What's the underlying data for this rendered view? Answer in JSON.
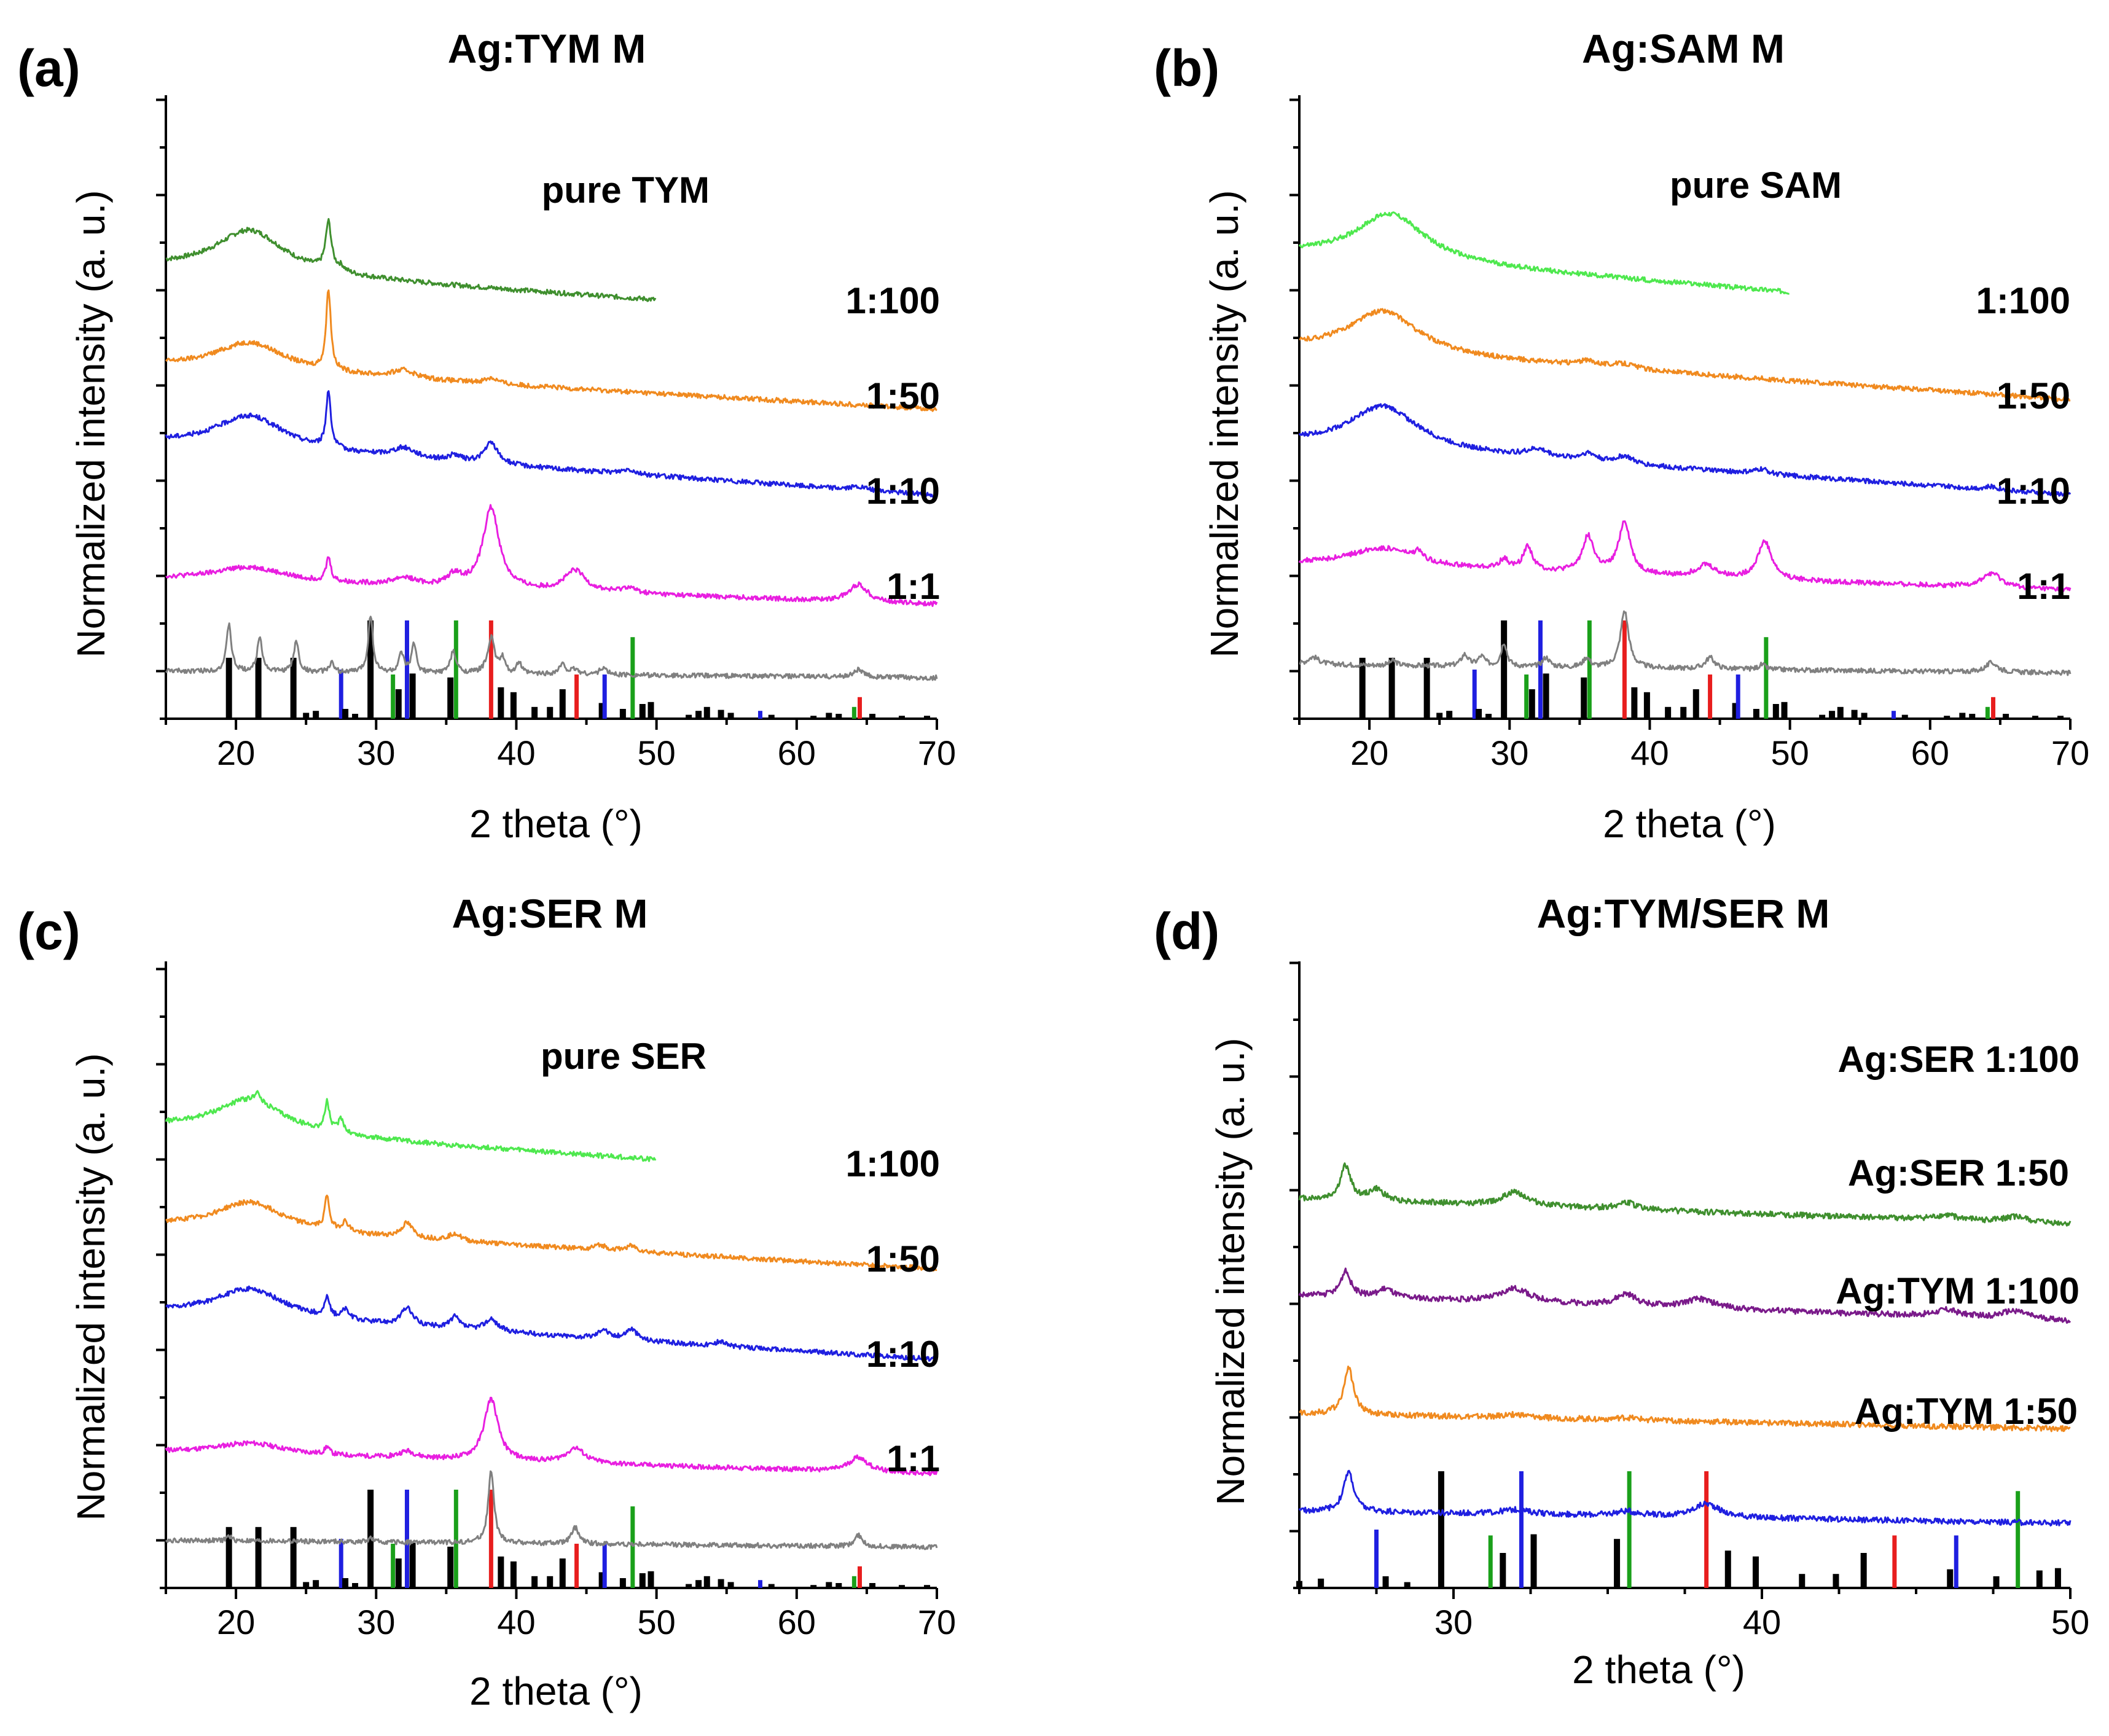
{
  "chart_data": [
    {
      "panel": "(a)",
      "type": "line",
      "title": "Ag:TYM M",
      "xlabel": "2 theta (°)",
      "ylabel": "Normalized intensity (a. u.)",
      "xlim": [
        15,
        70
      ],
      "xticks": [
        20,
        30,
        40,
        50,
        60,
        70
      ],
      "series": [
        {
          "name": "pure TYM",
          "color": "#3f8f2e",
          "xmax": 50,
          "offset": 4.05,
          "decay": 0.6,
          "start": 0.15,
          "peaks": [
            [
              21,
              0.45,
              3
            ],
            [
              26.6,
              0.5,
              0.25
            ],
            [
              27.5,
              0.05,
              0.3
            ]
          ]
        },
        {
          "name": "1:100",
          "color": "#f08a1f",
          "xmax": 70,
          "offset": 3.05,
          "decay": 0.5,
          "start": 0.2,
          "peaks": [
            [
              21,
              0.3,
              3
            ],
            [
              26.6,
              0.85,
              0.2
            ],
            [
              32,
              0.08,
              1
            ],
            [
              38.2,
              0.06,
              0.6
            ]
          ]
        },
        {
          "name": "1:50",
          "color": "#1f1fe0",
          "xmax": 70,
          "offset": 2.05,
          "decay": 0.6,
          "start": 0.3,
          "peaks": [
            [
              21,
              0.35,
              3
            ],
            [
              26.6,
              0.6,
              0.2
            ],
            [
              32,
              0.1,
              1
            ],
            [
              35.6,
              0.06,
              0.5
            ],
            [
              38.2,
              0.22,
              0.6
            ],
            [
              48,
              0.05,
              0.6
            ],
            [
              64.4,
              0.03,
              0.6
            ]
          ]
        },
        {
          "name": "1:10",
          "color": "#e81ee0",
          "xmax": 70,
          "offset": 1.05,
          "decay": 0.3,
          "start": 0.15,
          "peaks": [
            [
              21,
              0.15,
              3
            ],
            [
              26.6,
              0.25,
              0.2
            ],
            [
              32,
              0.08,
              1
            ],
            [
              35.6,
              0.12,
              0.6
            ],
            [
              38.2,
              0.85,
              0.7
            ],
            [
              44.2,
              0.22,
              0.9
            ],
            [
              48,
              0.06,
              0.6
            ],
            [
              64.4,
              0.18,
              0.8
            ]
          ]
        },
        {
          "name": "1:1",
          "color": "#808080",
          "xmax": 70,
          "offset": 0.38,
          "decay": 0.08,
          "start": 0.05,
          "peaks": [
            [
              19.5,
              0.5,
              0.2
            ],
            [
              21.7,
              0.38,
              0.2
            ],
            [
              24.3,
              0.33,
              0.2
            ],
            [
              26.8,
              0.1,
              0.2
            ],
            [
              29.6,
              0.6,
              0.2
            ],
            [
              31.8,
              0.2,
              0.2
            ],
            [
              32.7,
              0.3,
              0.2
            ],
            [
              35.5,
              0.22,
              0.25
            ],
            [
              38.2,
              0.38,
              0.3
            ],
            [
              39,
              0.15,
              0.2
            ],
            [
              40.2,
              0.12,
              0.2
            ],
            [
              43.3,
              0.1,
              0.3
            ],
            [
              44.2,
              0.05,
              0.3
            ],
            [
              46.2,
              0.07,
              0.3
            ],
            [
              64.4,
              0.08,
              0.4
            ]
          ]
        }
      ],
      "labels": [
        "pure TYM",
        "1:100",
        "1:50",
        "1:10",
        "1:1"
      ],
      "sticks": [
        {
          "x": 19.5,
          "h": 0.62,
          "c": "#000"
        },
        {
          "x": 21.6,
          "h": 0.62,
          "c": "#000"
        },
        {
          "x": 24.1,
          "h": 0.62,
          "c": "#000"
        },
        {
          "x": 25.0,
          "h": 0.06,
          "c": "#000"
        },
        {
          "x": 25.7,
          "h": 0.08,
          "c": "#000"
        },
        {
          "x": 27.5,
          "h": 0.5,
          "c": "#1f1fe0"
        },
        {
          "x": 27.8,
          "h": 0.1,
          "c": "#000"
        },
        {
          "x": 28.5,
          "h": 0.05,
          "c": "#000"
        },
        {
          "x": 29.6,
          "h": 1.0,
          "c": "#000"
        },
        {
          "x": 31.2,
          "h": 0.45,
          "c": "#1aa01a"
        },
        {
          "x": 31.6,
          "h": 0.3,
          "c": "#000"
        },
        {
          "x": 32.2,
          "h": 1.0,
          "c": "#1f1fe0"
        },
        {
          "x": 32.6,
          "h": 0.46,
          "c": "#000"
        },
        {
          "x": 35.3,
          "h": 0.42,
          "c": "#000"
        },
        {
          "x": 35.7,
          "h": 1.0,
          "c": "#1aa01a"
        },
        {
          "x": 38.2,
          "h": 1.0,
          "c": "#e81e1e"
        },
        {
          "x": 38.9,
          "h": 0.32,
          "c": "#000"
        },
        {
          "x": 39.8,
          "h": 0.27,
          "c": "#000"
        },
        {
          "x": 41.3,
          "h": 0.12,
          "c": "#000"
        },
        {
          "x": 42.4,
          "h": 0.12,
          "c": "#000"
        },
        {
          "x": 43.3,
          "h": 0.3,
          "c": "#000"
        },
        {
          "x": 44.3,
          "h": 0.45,
          "c": "#e81e1e"
        },
        {
          "x": 46.1,
          "h": 0.16,
          "c": "#000"
        },
        {
          "x": 46.3,
          "h": 0.45,
          "c": "#1f1fe0"
        },
        {
          "x": 47.6,
          "h": 0.1,
          "c": "#000"
        },
        {
          "x": 48.3,
          "h": 0.83,
          "c": "#1aa01a"
        },
        {
          "x": 49.0,
          "h": 0.15,
          "c": "#000"
        },
        {
          "x": 49.6,
          "h": 0.17,
          "c": "#000"
        },
        {
          "x": 52.3,
          "h": 0.04,
          "c": "#000"
        },
        {
          "x": 53.0,
          "h": 0.08,
          "c": "#000"
        },
        {
          "x": 53.6,
          "h": 0.12,
          "c": "#000"
        },
        {
          "x": 54.6,
          "h": 0.09,
          "c": "#000"
        },
        {
          "x": 55.3,
          "h": 0.06,
          "c": "#000"
        },
        {
          "x": 57.4,
          "h": 0.08,
          "c": "#1f1fe0"
        },
        {
          "x": 58.2,
          "h": 0.04,
          "c": "#000"
        },
        {
          "x": 61.2,
          "h": 0.03,
          "c": "#000"
        },
        {
          "x": 62.3,
          "h": 0.06,
          "c": "#000"
        },
        {
          "x": 63.0,
          "h": 0.05,
          "c": "#000"
        },
        {
          "x": 64.1,
          "h": 0.12,
          "c": "#1aa01a"
        },
        {
          "x": 64.5,
          "h": 0.22,
          "c": "#e81e1e"
        },
        {
          "x": 65.4,
          "h": 0.05,
          "c": "#000"
        },
        {
          "x": 67.5,
          "h": 0.03,
          "c": "#000"
        },
        {
          "x": 69.3,
          "h": 0.03,
          "c": "#000"
        }
      ]
    },
    {
      "panel": "(b)",
      "type": "line",
      "title": "Ag:SAM M",
      "xlabel": "2 theta (°)",
      "ylabel": "Normalized intensity (a. u.)",
      "xlim": [
        15,
        70
      ],
      "xticks": [
        20,
        30,
        40,
        50,
        60,
        70
      ],
      "series": [
        {
          "name": "pure SAM",
          "color": "#4ee84e",
          "xmax": 50,
          "offset": 4.05,
          "decay": 0.7,
          "start": 0.2,
          "peaks": [
            [
              21.5,
              0.5,
              3
            ]
          ]
        },
        {
          "name": "1:100",
          "color": "#f08a1f",
          "xmax": 70,
          "offset": 3.05,
          "decay": 0.6,
          "start": 0.3,
          "peaks": [
            [
              21,
              0.45,
              3
            ],
            [
              35.6,
              0.05,
              1
            ],
            [
              38.2,
              0.05,
              1
            ]
          ]
        },
        {
          "name": "1:50",
          "color": "#1f1fe0",
          "xmax": 70,
          "offset": 2.05,
          "decay": 0.6,
          "start": 0.3,
          "peaks": [
            [
              21,
              0.45,
              3
            ],
            [
              32,
              0.08,
              1
            ],
            [
              35.6,
              0.08,
              0.7
            ],
            [
              38.2,
              0.08,
              0.7
            ],
            [
              48,
              0.05,
              0.6
            ],
            [
              64.4,
              0.03,
              0.6
            ]
          ]
        },
        {
          "name": "1:10",
          "color": "#e81ee0",
          "xmax": 70,
          "offset": 1.05,
          "decay": 0.3,
          "start": 0.3,
          "peaks": [
            [
              21,
              0.2,
              3
            ],
            [
              23.5,
              0.08,
              0.3
            ],
            [
              29.6,
              0.1,
              0.4
            ],
            [
              31.3,
              0.25,
              0.4
            ],
            [
              35.6,
              0.38,
              0.5
            ],
            [
              38.2,
              0.55,
              0.5
            ],
            [
              44,
              0.13,
              0.8
            ],
            [
              48.2,
              0.4,
              0.6
            ],
            [
              64.4,
              0.15,
              0.8
            ]
          ]
        },
        {
          "name": "1:1",
          "color": "#808080",
          "xmax": 70,
          "offset": 0.38,
          "decay": 0.1,
          "start": 0.1,
          "peaks": [
            [
              16,
              0.08,
              0.5
            ],
            [
              21.7,
              0.05,
              0.3
            ],
            [
              26.8,
              0.12,
              0.3
            ],
            [
              28,
              0.1,
              0.3
            ],
            [
              29.6,
              0.25,
              0.25
            ],
            [
              32.6,
              0.1,
              0.3
            ],
            [
              35.5,
              0.1,
              0.3
            ],
            [
              38.2,
              0.6,
              0.35
            ],
            [
              44.3,
              0.12,
              0.4
            ],
            [
              48,
              0.05,
              0.3
            ],
            [
              64.4,
              0.1,
              0.5
            ]
          ]
        }
      ],
      "labels": [
        "pure SAM",
        "1:100",
        "1:50",
        "1:10",
        "1:1"
      ]
    },
    {
      "panel": "(c)",
      "type": "line",
      "title": "Ag:SER M",
      "xlabel": "2 theta (°)",
      "ylabel": "Normalized intensity (a. u.)",
      "xlim": [
        15,
        70
      ],
      "xticks": [
        20,
        30,
        40,
        50,
        60,
        70
      ],
      "series": [
        {
          "name": "pure SER",
          "color": "#4ee84e",
          "xmax": 50,
          "offset": 4.05,
          "decay": 0.6,
          "start": 0.25,
          "peaks": [
            [
              21,
              0.35,
              3
            ],
            [
              21.5,
              0.1,
              0.2
            ],
            [
              26.5,
              0.3,
              0.2
            ],
            [
              27.5,
              0.15,
              0.25
            ]
          ]
        },
        {
          "name": "1:100",
          "color": "#f08a1f",
          "xmax": 70,
          "offset": 3.05,
          "decay": 0.5,
          "start": 0.3,
          "peaks": [
            [
              21,
              0.3,
              3
            ],
            [
              26.5,
              0.35,
              0.2
            ],
            [
              27.8,
              0.1,
              0.3
            ],
            [
              32.2,
              0.15,
              0.5
            ],
            [
              35.6,
              0.08,
              0.5
            ],
            [
              46,
              0.05,
              0.5
            ],
            [
              48.2,
              0.06,
              0.5
            ]
          ]
        },
        {
          "name": "1:50",
          "color": "#1f1fe0",
          "xmax": 70,
          "offset": 2.05,
          "decay": 0.55,
          "start": 0.35,
          "peaks": [
            [
              21,
              0.3,
              3
            ],
            [
              26.5,
              0.2,
              0.2
            ],
            [
              27.8,
              0.1,
              0.3
            ],
            [
              32.2,
              0.18,
              0.5
            ],
            [
              35.6,
              0.12,
              0.4
            ],
            [
              38.2,
              0.12,
              0.6
            ],
            [
              46.2,
              0.1,
              0.4
            ],
            [
              48.2,
              0.12,
              0.5
            ],
            [
              54.6,
              0.05,
              0.4
            ]
          ]
        },
        {
          "name": "1:10",
          "color": "#e81ee0",
          "xmax": 70,
          "offset": 1.05,
          "decay": 0.25,
          "start": 0.15,
          "peaks": [
            [
              21,
              0.12,
              3
            ],
            [
              26.5,
              0.08,
              0.2
            ],
            [
              32.2,
              0.07,
              0.7
            ],
            [
              38.2,
              0.65,
              0.6
            ],
            [
              44.2,
              0.16,
              0.8
            ],
            [
              64.4,
              0.15,
              0.8
            ]
          ]
        },
        {
          "name": "1:1",
          "color": "#808080",
          "xmax": 70,
          "offset": 0.38,
          "decay": 0.08,
          "start": 0.05,
          "peaks": [
            [
              19.5,
              0.05,
              0.2
            ],
            [
              29.6,
              0.04,
              0.2
            ],
            [
              38.2,
              0.75,
              0.25
            ],
            [
              44.2,
              0.17,
              0.3
            ],
            [
              64.4,
              0.12,
              0.3
            ]
          ]
        }
      ],
      "labels": [
        "pure SER",
        "1:100",
        "1:50",
        "1:10",
        "1:1"
      ]
    },
    {
      "panel": "(d)",
      "type": "line",
      "title": "Ag:TYM/SER M",
      "xlabel": "2 theta (°)",
      "ylabel": "Normalized intensity (a. u.)",
      "xlim": [
        25,
        50
      ],
      "xticks": [
        30,
        40,
        50
      ],
      "series": [
        {
          "name": "Ag:SER 1:100",
          "color": "#3f8f2e",
          "xmax": 50,
          "offset": 3.1,
          "decay": 0.25,
          "start": 0.1,
          "peaks": [
            [
              26.5,
              0.3,
              0.2
            ],
            [
              27.5,
              0.1,
              0.3
            ],
            [
              32,
              0.12,
              0.5
            ],
            [
              35.6,
              0.06,
              0.4
            ],
            [
              46,
              0.04,
              0.5
            ],
            [
              48.2,
              0.05,
              0.5
            ]
          ]
        },
        {
          "name": "Ag:SER 1:50",
          "color": "#7a1a8a",
          "xmax": 50,
          "offset": 2.25,
          "decay": 0.25,
          "start": 0.1,
          "peaks": [
            [
              26.5,
              0.22,
              0.2
            ],
            [
              27.8,
              0.08,
              0.3
            ],
            [
              32,
              0.12,
              0.6
            ],
            [
              35.6,
              0.1,
              0.4
            ],
            [
              38,
              0.08,
              0.6
            ],
            [
              46,
              0.06,
              0.5
            ],
            [
              48.2,
              0.07,
              0.5
            ]
          ]
        },
        {
          "name": "Ag:TYM 1:100",
          "color": "#f08a1f",
          "xmax": 50,
          "offset": 1.38,
          "decay": 0.15,
          "start": 0.02,
          "peaks": [
            [
              26.6,
              0.4,
              0.2
            ],
            [
              32,
              0.03,
              0.5
            ],
            [
              35.6,
              0.02,
              0.5
            ]
          ]
        },
        {
          "name": "Ag:TYM 1:50",
          "color": "#1f1fe0",
          "xmax": 50,
          "offset": 0.52,
          "decay": 0.12,
          "start": 0.05,
          "peaks": [
            [
              26.6,
              0.35,
              0.2
            ],
            [
              32,
              0.04,
              0.6
            ],
            [
              35.6,
              0.04,
              0.5
            ],
            [
              38.2,
              0.12,
              0.5
            ]
          ]
        }
      ],
      "labels": [
        "Ag:SER 1:100",
        "Ag:SER 1:50",
        "Ag:TYM 1:100",
        "Ag:TYM 1:50"
      ]
    }
  ]
}
